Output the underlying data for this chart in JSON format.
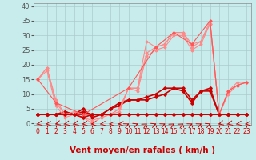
{
  "bg_color": "#c8ecec",
  "grid_color": "#aacccc",
  "xlabel": "Vent moyen/en rafales ( km/h )",
  "xlabel_color": "#cc0000",
  "xlabel_fontsize": 7.5,
  "xtick_fontsize": 5.5,
  "ytick_fontsize": 6,
  "ylim": [
    -0.5,
    41
  ],
  "xlim": [
    -0.5,
    23.5
  ],
  "yticks": [
    0,
    5,
    10,
    15,
    20,
    25,
    30,
    35,
    40
  ],
  "xticks": [
    0,
    1,
    2,
    3,
    4,
    5,
    6,
    7,
    8,
    9,
    10,
    11,
    12,
    13,
    14,
    15,
    16,
    17,
    18,
    19,
    20,
    21,
    22,
    23
  ],
  "series": [
    {
      "x": [
        0,
        1,
        2,
        3,
        4,
        5,
        6,
        7,
        8,
        9,
        10,
        11,
        12,
        13,
        14,
        15,
        16,
        17,
        18,
        19,
        20,
        21,
        22,
        23
      ],
      "y": [
        3,
        3,
        3,
        3,
        3,
        3,
        3,
        3,
        3,
        3,
        3,
        3,
        3,
        3,
        3,
        3,
        3,
        3,
        3,
        3,
        3,
        3,
        3,
        3
      ],
      "color": "#cc0000",
      "lw": 1.2,
      "marker": "D",
      "ms": 1.8
    },
    {
      "x": [
        0,
        1,
        2,
        3,
        4,
        5,
        6,
        7,
        8,
        9,
        10,
        11,
        12,
        13,
        14,
        15,
        16,
        17,
        18,
        19,
        20,
        21,
        22,
        23
      ],
      "y": [
        3,
        3,
        3,
        4,
        3,
        4,
        3,
        3,
        5,
        6,
        8,
        8,
        8,
        9,
        10,
        12,
        12,
        8,
        11,
        11,
        3,
        3,
        3,
        3
      ],
      "color": "#cc0000",
      "lw": 1.2,
      "marker": "D",
      "ms": 1.8
    },
    {
      "x": [
        0,
        1,
        2,
        3,
        4,
        5,
        6,
        7,
        8,
        9,
        10,
        11,
        12,
        13,
        14,
        15,
        16,
        17,
        18,
        19,
        20,
        21,
        22,
        23
      ],
      "y": [
        3,
        3,
        3,
        4,
        3,
        5,
        2,
        3,
        5,
        7,
        8,
        8,
        9,
        10,
        12,
        12,
        11,
        7,
        11,
        12,
        3,
        3,
        3,
        3
      ],
      "color": "#cc0000",
      "lw": 1.2,
      "marker": "D",
      "ms": 1.8
    },
    {
      "x": [
        0,
        1,
        2,
        3,
        4,
        5,
        6,
        7,
        8,
        9,
        10,
        11,
        12,
        13,
        14,
        15,
        16,
        17,
        18,
        19,
        20,
        21,
        22,
        23
      ],
      "y": [
        15,
        19,
        7,
        3,
        4,
        3,
        3,
        3,
        3,
        4,
        12,
        12,
        28,
        26,
        27,
        31,
        31,
        27,
        28,
        35,
        3,
        11,
        13,
        14
      ],
      "color": "#ff8888",
      "lw": 0.8,
      "marker": "D",
      "ms": 1.5
    },
    {
      "x": [
        0,
        1,
        2,
        3,
        4,
        5,
        6,
        7,
        8,
        9,
        10,
        11,
        12,
        13,
        14,
        15,
        16,
        17,
        18,
        19,
        20,
        21,
        22,
        23
      ],
      "y": [
        15,
        19,
        8,
        3,
        3,
        2,
        1,
        2,
        3,
        5,
        12,
        12,
        24,
        26,
        27,
        31,
        31,
        26,
        28,
        34,
        3,
        11,
        14,
        14
      ],
      "color": "#ff8888",
      "lw": 0.8,
      "marker": "D",
      "ms": 1.5
    },
    {
      "x": [
        0,
        1,
        2,
        3,
        4,
        5,
        6,
        7,
        8,
        9,
        10,
        11,
        12,
        13,
        14,
        15,
        16,
        17,
        18,
        19,
        20,
        21,
        22,
        23
      ],
      "y": [
        15,
        18,
        6,
        2,
        3,
        2,
        0,
        2,
        3,
        5,
        12,
        11,
        23,
        25,
        26,
        30,
        30,
        25,
        27,
        34,
        3,
        10,
        13,
        14
      ],
      "color": "#ff8888",
      "lw": 0.8,
      "marker": "D",
      "ms": 1.5
    },
    {
      "x": [
        0,
        2,
        5,
        10,
        13,
        15,
        17,
        19,
        20,
        21,
        22,
        23
      ],
      "y": [
        15,
        7,
        3,
        12,
        26,
        31,
        27,
        35,
        3,
        11,
        13,
        14
      ],
      "color": "#ff5555",
      "lw": 0.8,
      "marker": "D",
      "ms": 1.5
    },
    {
      "x": [
        0,
        1,
        2,
        3,
        4,
        5,
        6,
        7,
        8,
        9,
        10,
        11,
        12,
        13,
        14,
        15,
        16,
        17,
        18,
        19,
        20,
        21,
        22,
        23
      ],
      "y": [
        3,
        3,
        3,
        3,
        3,
        2,
        3,
        3,
        3,
        3,
        3,
        3,
        3,
        3,
        3,
        3,
        3,
        3,
        3,
        3,
        3,
        3,
        3,
        3
      ],
      "color": "#cc0000",
      "lw": 1.2,
      "marker": "D",
      "ms": 1.8
    }
  ],
  "wind_symbols": [
    "ك",
    "ك",
    "ك",
    "ك",
    "ك",
    "ك",
    "ك",
    "ك",
    "ك",
    "ك",
    "ك",
    "ك",
    "ك",
    "ك",
    "ك",
    "ك",
    "ك",
    "ك",
    "ك",
    "ك",
    "ك",
    "ك",
    "ك",
    "ك"
  ],
  "arrow_angles": [
    210,
    200,
    220,
    210,
    215,
    200,
    195,
    200,
    185,
    190,
    55,
    50,
    60,
    50,
    55,
    60,
    60,
    55,
    55,
    50,
    220,
    215,
    205,
    200
  ]
}
